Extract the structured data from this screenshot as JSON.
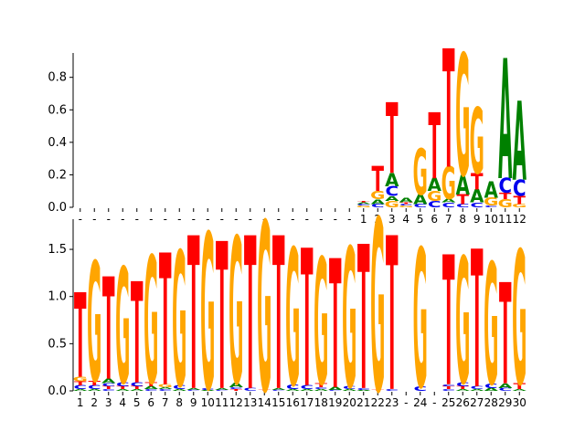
{
  "colors": {
    "A": "#008000",
    "C": "#0000ee",
    "G": "#ffa500",
    "T": "#ff0000",
    "axis": "#000000"
  },
  "chart_data": [
    {
      "type": "sequence-logo",
      "ylim": [
        0,
        0.95
      ],
      "yticks": [
        "0.0",
        "0.2",
        "0.4",
        "0.6",
        "0.8"
      ],
      "ytick_values": [
        0,
        0.2,
        0.4,
        0.6,
        0.8
      ],
      "xlabels": [
        "-",
        "-",
        "-",
        "-",
        "-",
        "-",
        "-",
        "-",
        "-",
        "-",
        "-",
        "-",
        "-",
        "-",
        "-",
        "-",
        "-",
        "-",
        "-",
        "-",
        "1",
        "2",
        "3",
        "4",
        "5",
        "6",
        "7",
        "8",
        "9",
        "10",
        "11",
        "12"
      ],
      "columns": [
        [],
        [],
        [],
        [],
        [],
        [],
        [],
        [],
        [],
        [],
        [],
        [],
        [],
        [],
        [],
        [],
        [],
        [],
        [],
        [],
        [
          [
            "G",
            0.01
          ],
          [
            "C",
            0.01
          ],
          [
            "A",
            0.01
          ],
          [
            "T",
            0.005
          ]
        ],
        [
          [
            "C",
            0.02
          ],
          [
            "A",
            0.03
          ],
          [
            "G",
            0.05
          ],
          [
            "T",
            0.15
          ]
        ],
        [
          [
            "G",
            0.04
          ],
          [
            "A",
            0.03
          ],
          [
            "C",
            0.06
          ],
          [
            "A",
            0.08
          ],
          [
            "T",
            0.43
          ]
        ],
        [
          [
            "G",
            0.01
          ],
          [
            "C",
            0.01
          ],
          [
            "T",
            0.01
          ],
          [
            "A",
            0.03
          ]
        ],
        [
          [
            "C",
            0.02
          ],
          [
            "A",
            0.06
          ],
          [
            "G",
            0.28
          ]
        ],
        [
          [
            "C",
            0.04
          ],
          [
            "G",
            0.06
          ],
          [
            "A",
            0.08
          ],
          [
            "T",
            0.4
          ]
        ],
        [
          [
            "C",
            0.03
          ],
          [
            "A",
            0.02
          ],
          [
            "G",
            0.2
          ],
          [
            "T",
            0.72
          ]
        ],
        [
          [
            "C",
            0.02
          ],
          [
            "T",
            0.06
          ],
          [
            "A",
            0.12
          ],
          [
            "G",
            0.74
          ]
        ],
        [
          [
            "C",
            0.03
          ],
          [
            "A",
            0.08
          ],
          [
            "T",
            0.1
          ],
          [
            "G",
            0.4
          ]
        ],
        [
          [
            "C",
            0.01
          ],
          [
            "G",
            0.05
          ],
          [
            "A",
            0.1
          ]
        ],
        [
          [
            "G",
            0.05
          ],
          [
            "T",
            0.04
          ],
          [
            "C",
            0.09
          ],
          [
            "A",
            0.73
          ]
        ],
        [
          [
            "G",
            0.02
          ],
          [
            "T",
            0.05
          ],
          [
            "C",
            0.1
          ],
          [
            "A",
            0.48
          ]
        ]
      ]
    },
    {
      "type": "sequence-logo",
      "ylim": [
        0,
        1.82
      ],
      "yticks": [
        "0.0",
        "0.5",
        "1.0",
        "1.5"
      ],
      "ytick_values": [
        0,
        0.5,
        1.0,
        1.5
      ],
      "xlabels": [
        "1",
        "2",
        "3",
        "4",
        "5",
        "6",
        "7",
        "8",
        "9",
        "10",
        "11",
        "12",
        "13",
        "14",
        "15",
        "16",
        "17",
        "18",
        "19",
        "20",
        "21",
        "22",
        "23",
        "-",
        "24",
        "-",
        "25",
        "26",
        "27",
        "28",
        "29",
        "30"
      ],
      "columns": [
        [
          [
            "A",
            0.02
          ],
          [
            "C",
            0.04
          ],
          [
            "T",
            0.04
          ],
          [
            "G",
            0.05
          ],
          [
            "T",
            0.88
          ]
        ],
        [
          [
            "A",
            0.02
          ],
          [
            "C",
            0.04
          ],
          [
            "T",
            0.05
          ],
          [
            "G",
            1.25
          ]
        ],
        [
          [
            "C",
            0.02
          ],
          [
            "T",
            0.03
          ],
          [
            "C",
            0.03
          ],
          [
            "A",
            0.05
          ],
          [
            "T",
            1.07
          ]
        ],
        [
          [
            "A",
            0.02
          ],
          [
            "T",
            0.03
          ],
          [
            "C",
            0.04
          ],
          [
            "G",
            1.21
          ]
        ],
        [
          [
            "A",
            0.02
          ],
          [
            "T",
            0.03
          ],
          [
            "C",
            0.04
          ],
          [
            "T",
            1.06
          ]
        ],
        [
          [
            "C",
            0.02
          ],
          [
            "A",
            0.03
          ],
          [
            "T",
            0.04
          ],
          [
            "G",
            1.33
          ]
        ],
        [
          [
            "C",
            0.02
          ],
          [
            "A",
            0.02
          ],
          [
            "G",
            0.03
          ],
          [
            "T",
            1.38
          ]
        ],
        [
          [
            "A",
            0.02
          ],
          [
            "C",
            0.04
          ],
          [
            "G",
            1.41
          ]
        ],
        [
          [
            "C",
            0.01
          ],
          [
            "A",
            0.02
          ],
          [
            "T",
            1.6
          ]
        ],
        [
          [
            "A",
            0.01
          ],
          [
            "C",
            0.02
          ],
          [
            "G",
            1.63
          ]
        ],
        [
          [
            "C",
            0.01
          ],
          [
            "A",
            0.02
          ],
          [
            "T",
            1.54
          ]
        ],
        [
          [
            "T",
            0.02
          ],
          [
            "C",
            0.02
          ],
          [
            "A",
            0.05
          ],
          [
            "G",
            1.53
          ]
        ],
        [
          [
            "C",
            0.03
          ],
          [
            "T",
            1.6
          ]
        ],
        [
          [
            "T",
            0.01
          ],
          [
            "G",
            1.77
          ]
        ],
        [
          [
            "C",
            0.01
          ],
          [
            "A",
            0.02
          ],
          [
            "T",
            1.6
          ]
        ],
        [
          [
            "A",
            0.02
          ],
          [
            "C",
            0.05
          ],
          [
            "G",
            1.43
          ]
        ],
        [
          [
            "A",
            0.02
          ],
          [
            "C",
            0.04
          ],
          [
            "T",
            1.44
          ]
        ],
        [
          [
            "A",
            0.02
          ],
          [
            "C",
            0.02
          ],
          [
            "T",
            0.04
          ],
          [
            "G",
            1.32
          ]
        ],
        [
          [
            "C",
            0.01
          ],
          [
            "A",
            0.03
          ],
          [
            "T",
            1.35
          ]
        ],
        [
          [
            "A",
            0.02
          ],
          [
            "C",
            0.03
          ],
          [
            "G",
            1.46
          ]
        ],
        [
          [
            "A",
            0.01
          ],
          [
            "C",
            0.02
          ],
          [
            "T",
            1.51
          ]
        ],
        [
          [
            "T",
            0.01
          ],
          [
            "G",
            1.8
          ]
        ],
        [
          [
            "C",
            0.02
          ],
          [
            "T",
            1.61
          ]
        ],
        [],
        [
          [
            "C",
            0.05
          ],
          [
            "G",
            1.45
          ]
        ],
        [],
        [
          [
            "C",
            0.02
          ],
          [
            "T",
            0.03
          ],
          [
            "C",
            0.02
          ],
          [
            "T",
            1.36
          ]
        ],
        [
          [
            "A",
            0.02
          ],
          [
            "T",
            0.03
          ],
          [
            "C",
            0.04
          ],
          [
            "G",
            1.32
          ]
        ],
        [
          [
            "A",
            0.02
          ],
          [
            "C",
            0.03
          ],
          [
            "T",
            1.44
          ]
        ],
        [
          [
            "A",
            0.03
          ],
          [
            "C",
            0.05
          ],
          [
            "G",
            1.27
          ]
        ],
        [
          [
            "C",
            0.03
          ],
          [
            "A",
            0.05
          ],
          [
            "T",
            1.06
          ]
        ],
        [
          [
            "A",
            0.02
          ],
          [
            "T",
            0.06
          ],
          [
            "G",
            1.4
          ]
        ]
      ]
    }
  ]
}
